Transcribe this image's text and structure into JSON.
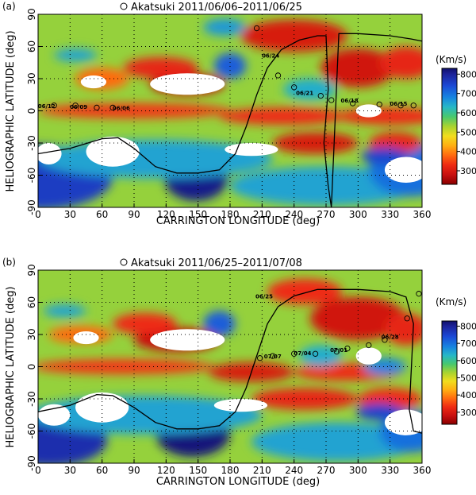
{
  "figure": {
    "colorbar_unit": "(Km/s)",
    "colors": {
      "frame": "#000000",
      "grid": "#000000",
      "track_marker": "#000000",
      "neutral_line": "#000000",
      "data_gap": "#ffffff"
    },
    "colormap": [
      {
        "v": 230,
        "color": "#8a0000"
      },
      {
        "v": 280,
        "color": "#c81010"
      },
      {
        "v": 330,
        "color": "#ee2a12"
      },
      {
        "v": 380,
        "color": "#ff6a10"
      },
      {
        "v": 430,
        "color": "#ffae12"
      },
      {
        "v": 480,
        "color": "#f1dd1e"
      },
      {
        "v": 530,
        "color": "#a8d330"
      },
      {
        "v": 580,
        "color": "#48c86e"
      },
      {
        "v": 630,
        "color": "#26b7c7"
      },
      {
        "v": 680,
        "color": "#1784e0"
      },
      {
        "v": 740,
        "color": "#1b49d6"
      },
      {
        "v": 800,
        "color": "#1c2299"
      },
      {
        "v": 830,
        "color": "#10106a"
      }
    ]
  },
  "chart_data": [
    {
      "type": "heatmap",
      "panel_label": "(a)",
      "title": "Akatsuki 2011/06/06–2011/06/25",
      "xlabel": "CARRINGTON LONGITUDE (deg)",
      "ylabel": "HELIOGRAPHIC LATITUDE (deg)",
      "xlim": [
        0,
        360
      ],
      "ylim": [
        -90,
        90
      ],
      "xticks": [
        "0",
        "30",
        "60",
        "90",
        "120",
        "150",
        "180",
        "210",
        "240",
        "270",
        "300",
        "330",
        "360"
      ],
      "yticks": [
        "-90",
        "-60",
        "-30",
        "0",
        "30",
        "60",
        "90"
      ],
      "grid": true,
      "colorbar": {
        "label": "(Km/s)",
        "range": [
          230,
          830
        ],
        "ticks": [
          "300",
          "400",
          "500",
          "600",
          "700",
          "800"
        ]
      },
      "background_speed": 540,
      "speed_regions": [
        {
          "lon": 0,
          "lat": -62,
          "rx": 70,
          "ry": 30,
          "v": 760
        },
        {
          "lon": 148,
          "lat": -62,
          "rx": 30,
          "ry": 22,
          "v": 810
        },
        {
          "lon": 110,
          "lat": -45,
          "rx": 110,
          "ry": 18,
          "v": 650
        },
        {
          "lon": 270,
          "lat": -70,
          "rx": 90,
          "ry": 18,
          "v": 650
        },
        {
          "lon": 350,
          "lat": -55,
          "rx": 40,
          "ry": 25,
          "v": 700
        },
        {
          "lon": 90,
          "lat": 0,
          "rx": 90,
          "ry": 7,
          "v": 340
        },
        {
          "lon": 230,
          "lat": -5,
          "rx": 60,
          "ry": 8,
          "v": 330
        },
        {
          "lon": 330,
          "lat": -5,
          "rx": 50,
          "ry": 8,
          "v": 330
        },
        {
          "lon": 260,
          "lat": -30,
          "rx": 40,
          "ry": 10,
          "v": 300
        },
        {
          "lon": 335,
          "lat": -30,
          "rx": 25,
          "ry": 10,
          "v": 320
        },
        {
          "lon": 140,
          "lat": 25,
          "rx": 35,
          "ry": 10,
          "v": 280
        },
        {
          "lon": 115,
          "lat": 40,
          "rx": 35,
          "ry": 10,
          "v": 320
        },
        {
          "lon": 240,
          "lat": 70,
          "rx": 50,
          "ry": 15,
          "v": 300
        },
        {
          "lon": 300,
          "lat": 40,
          "rx": 35,
          "ry": 18,
          "v": 290
        },
        {
          "lon": 345,
          "lat": 45,
          "rx": 25,
          "ry": 15,
          "v": 320
        },
        {
          "lon": 60,
          "lat": 30,
          "rx": 25,
          "ry": 10,
          "v": 380
        },
        {
          "lon": 35,
          "lat": 52,
          "rx": 20,
          "ry": 6,
          "v": 650
        },
        {
          "lon": 180,
          "lat": 42,
          "rx": 15,
          "ry": 12,
          "v": 720
        },
        {
          "lon": 255,
          "lat": 20,
          "rx": 25,
          "ry": 10,
          "v": 640
        },
        {
          "lon": 325,
          "lat": -42,
          "rx": 22,
          "ry": 8,
          "v": 750
        },
        {
          "lon": 175,
          "lat": 78,
          "rx": 20,
          "ry": 8,
          "v": 660
        }
      ],
      "data_gaps": [
        {
          "lon": 70,
          "lat": -38,
          "rx": 25,
          "ry": 14
        },
        {
          "lon": 10,
          "lat": -40,
          "rx": 12,
          "ry": 10
        },
        {
          "lon": 140,
          "lat": 25,
          "rx": 35,
          "ry": 10
        },
        {
          "lon": 52,
          "lat": 27,
          "rx": 12,
          "ry": 6
        },
        {
          "lon": 200,
          "lat": -36,
          "rx": 25,
          "ry": 6
        },
        {
          "lon": 310,
          "lat": 0,
          "rx": 12,
          "ry": 6
        },
        {
          "lon": 345,
          "lat": -55,
          "rx": 20,
          "ry": 12
        }
      ],
      "neutral_line": [
        [
          0,
          -40
        ],
        [
          30,
          -35
        ],
        [
          60,
          -26
        ],
        [
          75,
          -25
        ],
        [
          90,
          -35
        ],
        [
          110,
          -52
        ],
        [
          130,
          -58
        ],
        [
          150,
          -58
        ],
        [
          170,
          -55
        ],
        [
          185,
          -40
        ],
        [
          195,
          -15
        ],
        [
          205,
          15
        ],
        [
          215,
          40
        ],
        [
          228,
          57
        ],
        [
          245,
          66
        ],
        [
          262,
          70
        ],
        [
          270,
          70
        ],
        [
          272,
          20
        ],
        [
          268,
          -30
        ],
        [
          272,
          -70
        ],
        [
          275,
          -90
        ],
        [
          282,
          72
        ],
        [
          300,
          72
        ],
        [
          330,
          70
        ],
        [
          350,
          67
        ],
        [
          360,
          65
        ]
      ],
      "track": [
        {
          "lon": 205,
          "lat": 77
        },
        {
          "lon": 225,
          "lat": 33
        },
        {
          "lon": 240,
          "lat": 22
        },
        {
          "lon": 265,
          "lat": 14
        },
        {
          "lon": 275,
          "lat": 10
        },
        {
          "lon": 295,
          "lat": 7
        },
        {
          "lon": 320,
          "lat": 6
        },
        {
          "lon": 340,
          "lat": 5
        },
        {
          "lon": 352,
          "lat": 5
        },
        {
          "lon": 15,
          "lat": 5
        },
        {
          "lon": 35,
          "lat": 5
        },
        {
          "lon": 55,
          "lat": 3
        },
        {
          "lon": 70,
          "lat": 3
        }
      ],
      "track_labels": [
        {
          "text": "06/24",
          "lon": 218,
          "lat": 52
        },
        {
          "text": "06/21",
          "lon": 250,
          "lat": 17
        },
        {
          "text": "06/18",
          "lon": 292,
          "lat": 10
        },
        {
          "text": "06/15",
          "lon": 338,
          "lat": 7
        },
        {
          "text": "06/12",
          "lon": 8,
          "lat": 5
        },
        {
          "text": "06/09",
          "lon": 38,
          "lat": 4
        },
        {
          "text": "06/06",
          "lon": 78,
          "lat": 3
        }
      ]
    },
    {
      "type": "heatmap",
      "panel_label": "(b)",
      "title": "Akatsuki 2011/06/25–2011/07/08",
      "xlabel": "CARRINGTON LONGITUDE (deg)",
      "ylabel": "HELIOGRAPHIC LATITUDE (deg)",
      "xlim": [
        0,
        360
      ],
      "ylim": [
        -90,
        90
      ],
      "xticks": [
        "0",
        "30",
        "60",
        "90",
        "120",
        "150",
        "180",
        "210",
        "240",
        "270",
        "300",
        "330",
        "360"
      ],
      "yticks": [
        "-90",
        "-60",
        "-30",
        "0",
        "30",
        "60",
        "90"
      ],
      "grid": true,
      "colorbar": {
        "label": "(Km/s)",
        "range": [
          230,
          830
        ],
        "ticks": [
          "300",
          "400",
          "500",
          "600",
          "700",
          "800"
        ]
      },
      "background_speed": 540,
      "speed_regions": [
        {
          "lon": 10,
          "lat": -68,
          "rx": 55,
          "ry": 25,
          "v": 780
        },
        {
          "lon": 145,
          "lat": -62,
          "rx": 35,
          "ry": 22,
          "v": 820
        },
        {
          "lon": 100,
          "lat": -45,
          "rx": 110,
          "ry": 18,
          "v": 650
        },
        {
          "lon": 280,
          "lat": -70,
          "rx": 80,
          "ry": 18,
          "v": 650
        },
        {
          "lon": 350,
          "lat": -60,
          "rx": 30,
          "ry": 20,
          "v": 700
        },
        {
          "lon": 80,
          "lat": 0,
          "rx": 85,
          "ry": 7,
          "v": 340
        },
        {
          "lon": 200,
          "lat": -5,
          "rx": 40,
          "ry": 9,
          "v": 300
        },
        {
          "lon": 290,
          "lat": -5,
          "rx": 50,
          "ry": 8,
          "v": 330
        },
        {
          "lon": 250,
          "lat": -30,
          "rx": 50,
          "ry": 10,
          "v": 320
        },
        {
          "lon": 330,
          "lat": -30,
          "rx": 30,
          "ry": 10,
          "v": 330
        },
        {
          "lon": 130,
          "lat": 25,
          "rx": 40,
          "ry": 11,
          "v": 280
        },
        {
          "lon": 100,
          "lat": 40,
          "rx": 30,
          "ry": 10,
          "v": 330
        },
        {
          "lon": 300,
          "lat": 45,
          "rx": 45,
          "ry": 20,
          "v": 290
        },
        {
          "lon": 345,
          "lat": 35,
          "rx": 20,
          "ry": 15,
          "v": 320
        },
        {
          "lon": 250,
          "lat": 70,
          "rx": 35,
          "ry": 12,
          "v": 330
        },
        {
          "lon": 40,
          "lat": 30,
          "rx": 30,
          "ry": 8,
          "v": 380
        },
        {
          "lon": 25,
          "lat": 52,
          "rx": 20,
          "ry": 6,
          "v": 650
        },
        {
          "lon": 170,
          "lat": 40,
          "rx": 15,
          "ry": 12,
          "v": 720
        },
        {
          "lon": 265,
          "lat": 10,
          "rx": 20,
          "ry": 10,
          "v": 640
        },
        {
          "lon": 320,
          "lat": -42,
          "rx": 22,
          "ry": 8,
          "v": 750
        },
        {
          "lon": 325,
          "lat": 0,
          "rx": 20,
          "ry": 8,
          "v": 680
        }
      ],
      "data_gaps": [
        {
          "lon": 60,
          "lat": -38,
          "rx": 25,
          "ry": 14
        },
        {
          "lon": 15,
          "lat": -45,
          "rx": 15,
          "ry": 10
        },
        {
          "lon": 140,
          "lat": 25,
          "rx": 35,
          "ry": 10
        },
        {
          "lon": 45,
          "lat": 27,
          "rx": 12,
          "ry": 6
        },
        {
          "lon": 190,
          "lat": -36,
          "rx": 25,
          "ry": 6
        },
        {
          "lon": 310,
          "lat": 10,
          "rx": 12,
          "ry": 8
        },
        {
          "lon": 345,
          "lat": -52,
          "rx": 20,
          "ry": 12
        }
      ],
      "neutral_line": [
        [
          0,
          -42
        ],
        [
          30,
          -36
        ],
        [
          55,
          -26
        ],
        [
          70,
          -27
        ],
        [
          90,
          -38
        ],
        [
          110,
          -52
        ],
        [
          130,
          -58
        ],
        [
          150,
          -58
        ],
        [
          170,
          -55
        ],
        [
          185,
          -42
        ],
        [
          195,
          -20
        ],
        [
          205,
          10
        ],
        [
          215,
          40
        ],
        [
          225,
          56
        ],
        [
          240,
          66
        ],
        [
          262,
          72
        ],
        [
          300,
          72
        ],
        [
          330,
          70
        ],
        [
          345,
          65
        ],
        [
          352,
          40
        ],
        [
          350,
          0
        ],
        [
          348,
          -40
        ],
        [
          352,
          -60
        ],
        [
          360,
          -62
        ]
      ],
      "track": [
        {
          "lon": 357,
          "lat": 68
        },
        {
          "lon": 346,
          "lat": 45
        },
        {
          "lon": 325,
          "lat": 25
        },
        {
          "lon": 310,
          "lat": 20
        },
        {
          "lon": 290,
          "lat": 17
        },
        {
          "lon": 280,
          "lat": 14
        },
        {
          "lon": 260,
          "lat": 12
        },
        {
          "lon": 240,
          "lat": 12
        },
        {
          "lon": 220,
          "lat": 10
        },
        {
          "lon": 208,
          "lat": 8
        }
      ],
      "track_labels": [
        {
          "text": "06/25",
          "lon": 212,
          "lat": 66
        },
        {
          "text": "06/28",
          "lon": 330,
          "lat": 28
        },
        {
          "text": "07/01",
          "lon": 282,
          "lat": 16
        },
        {
          "text": "07/04",
          "lon": 248,
          "lat": 13
        },
        {
          "text": "07/07",
          "lon": 220,
          "lat": 10
        }
      ]
    }
  ]
}
